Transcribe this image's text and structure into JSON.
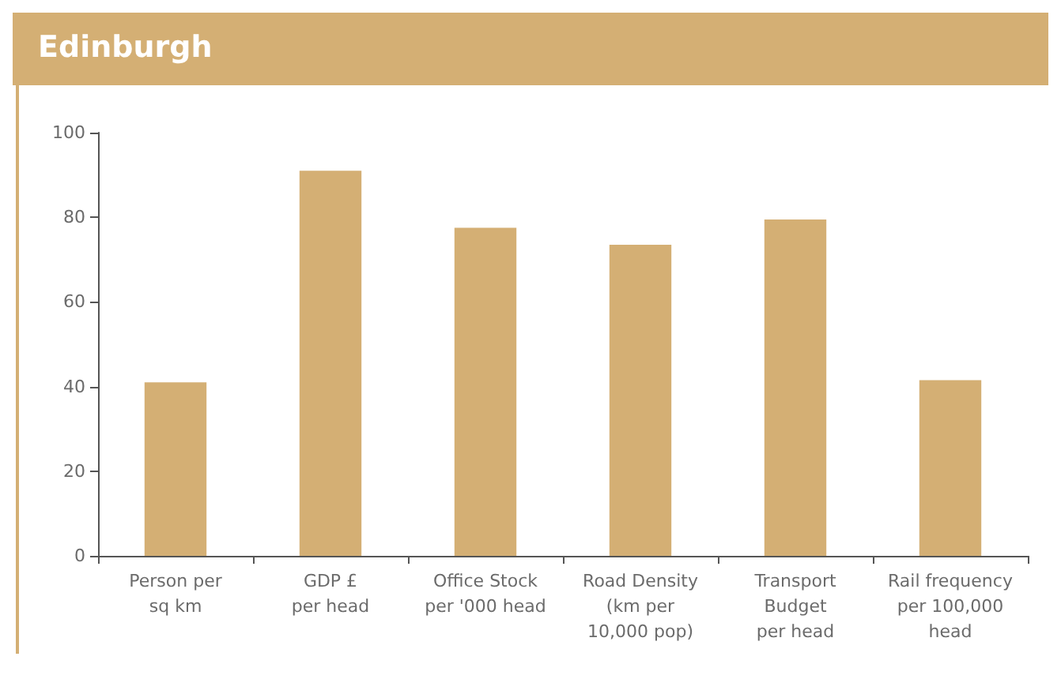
{
  "chart_data": {
    "type": "bar",
    "title": "Edinburgh",
    "categories": [
      "Person per\nsq km",
      "GDP £\nper head",
      "Office Stock\nper '000 head",
      "Road Density\n(km per\n10,000 pop)",
      "Transport\nBudget\nper head",
      "Rail frequency\nper 100,000\nhead"
    ],
    "values": [
      41,
      91,
      77.5,
      73.5,
      79.5,
      41.5
    ],
    "color": "#d4af74",
    "ylim": [
      0,
      100
    ],
    "yticks": [
      0,
      20,
      40,
      60,
      80,
      100
    ],
    "grid": false
  }
}
